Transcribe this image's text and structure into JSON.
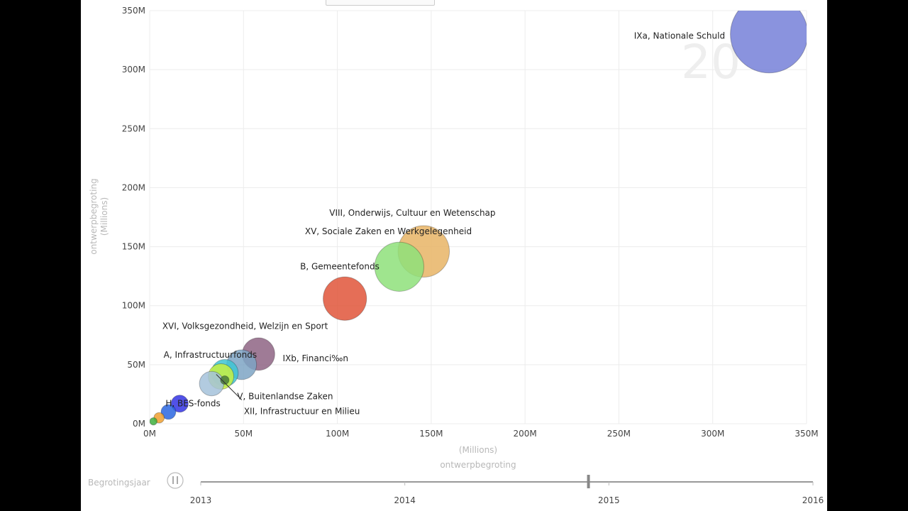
{
  "chart_data": {
    "type": "scatter",
    "subtype": "bubble",
    "xlabel": "ontwerpbegroting",
    "xlabel_unit": "(Millions)",
    "ylabel": "ontwerpbegroting",
    "ylabel_unit": "(Millions)",
    "xlim": [
      0,
      350
    ],
    "ylim": [
      0,
      350
    ],
    "x_ticks": [
      "0M",
      "50M",
      "100M",
      "150M",
      "200M",
      "250M",
      "300M",
      "350M"
    ],
    "y_ticks": [
      "0M",
      "50M",
      "100M",
      "150M",
      "200M",
      "250M",
      "300M",
      "350M"
    ],
    "grid": true,
    "watermark_year": "20",
    "points": [
      {
        "label": "IXa, Nationale Schuld",
        "x": 330,
        "y": 330,
        "size": 330,
        "color": "#7680d8"
      },
      {
        "label": "VIII, Onderwijs, Cultuur en Wetenschap",
        "x": 146,
        "y": 146,
        "size": 146,
        "color": "#e8b465"
      },
      {
        "label": "XV, Sociale Zaken en Werkgelegenheid",
        "x": 133,
        "y": 133,
        "size": 133,
        "color": "#8ee07a"
      },
      {
        "label": "B, Gemeentefonds",
        "x": 104,
        "y": 106,
        "size": 104,
        "color": "#e0553a"
      },
      {
        "label": "IXb, Financi‰n",
        "x": 58,
        "y": 59,
        "size": 58,
        "color": "#8e6484"
      },
      {
        "label": "A, Infrastructuurfonds",
        "x": 49,
        "y": 50,
        "size": 49,
        "color": "#7ea4c4"
      },
      {
        "label": "XVI, Volksgezondheid, Welzijn en Sport",
        "x": 40,
        "y": 43,
        "size": 40,
        "color": "#3ec4d4"
      },
      {
        "label": "",
        "x": 38,
        "y": 40,
        "size": 36,
        "color": "#c8f040"
      },
      {
        "label": "V, Buitenlandse Zaken",
        "x": 33,
        "y": 34,
        "size": 33,
        "color": "#a4c2da"
      },
      {
        "label": "XII, Infrastructuur en Milieu",
        "x": 40,
        "y": 37,
        "size": 4,
        "color": "#4a7a3a"
      },
      {
        "label": "H, BES-fonds",
        "x": 16,
        "y": 17,
        "size": 16,
        "color": "#3434e4"
      },
      {
        "label": "",
        "x": 10,
        "y": 10,
        "size": 12,
        "color": "#2a66e0"
      },
      {
        "label": "",
        "x": 5,
        "y": 5,
        "size": 6,
        "color": "#f0a030"
      },
      {
        "label": "",
        "x": 2,
        "y": 2,
        "size": 3,
        "color": "#40b040"
      }
    ]
  },
  "play_axis": {
    "label": "Begrotingsjaar",
    "ticks": [
      "2013",
      "2014",
      "2015",
      "2016"
    ],
    "min": 2013,
    "max": 2016,
    "value": 2014.9,
    "play_state": "paused"
  },
  "colors": {
    "grid": "#ececec",
    "axis_title": "#b8b8b8",
    "slider": "#999999"
  }
}
